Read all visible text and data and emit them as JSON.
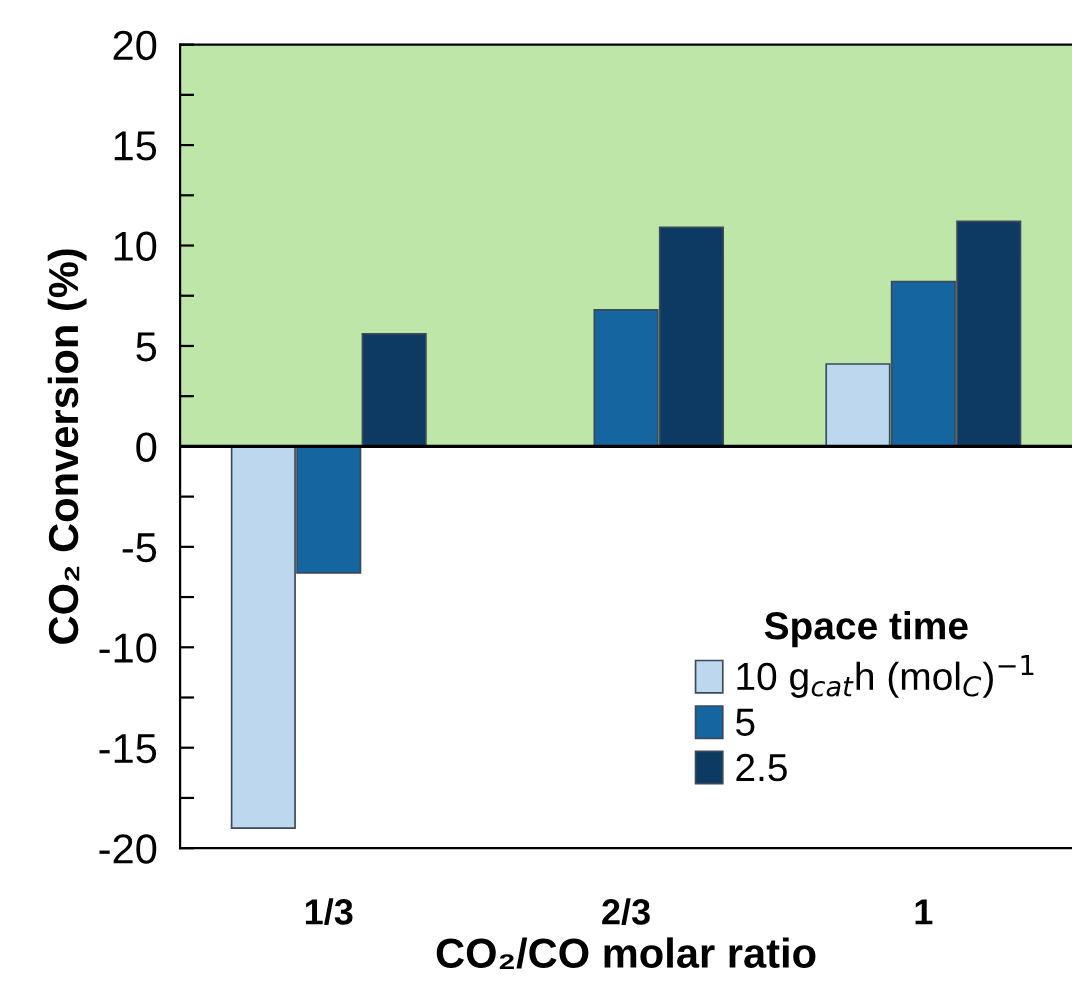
{
  "chart_data": {
    "type": "bar",
    "xlabel": "CO₂/CO molar ratio",
    "ylabel": "CO₂ Conversion (%)",
    "legend_title": "Space time",
    "legend": "bottom right",
    "categories": [
      "1/3",
      "2/3",
      "1"
    ],
    "series": [
      {
        "name": "10 g$_{cat}$h (mol$_{C}$)$^{−1}$",
        "color": "#bdd7ee",
        "values": [
          -19.0,
          null,
          4.1
        ]
      },
      {
        "name": "5",
        "color": "#1565a0",
        "values": [
          -6.3,
          6.8,
          8.2
        ]
      },
      {
        "name": "2.5",
        "color": "#0d3a63",
        "values": [
          5.6,
          10.9,
          11.2
        ]
      }
    ],
    "ylim": [
      -20,
      20
    ],
    "yticks": [
      -20,
      {
        "value": -17.5,
        "label": null
      },
      -15,
      {
        "value": -12.5,
        "label": null
      },
      -10,
      {
        "value": -7.5,
        "label": null
      },
      -5,
      {
        "value": -2.5,
        "label": null
      },
      0,
      {
        "value": 2.5,
        "label": null
      },
      5,
      {
        "value": 7.5,
        "label": null
      },
      10,
      {
        "value": 12.5,
        "label": null
      },
      15,
      {
        "value": 17.5,
        "label": null
      },
      20
    ],
    "bands": [
      {
        "axis": "y",
        "from": 0,
        "to": 20,
        "color": "#bee6a8"
      }
    ],
    "ref_lines": [
      {
        "axis": "y",
        "value": 0,
        "color": "#000000"
      }
    ],
    "grid": false
  }
}
